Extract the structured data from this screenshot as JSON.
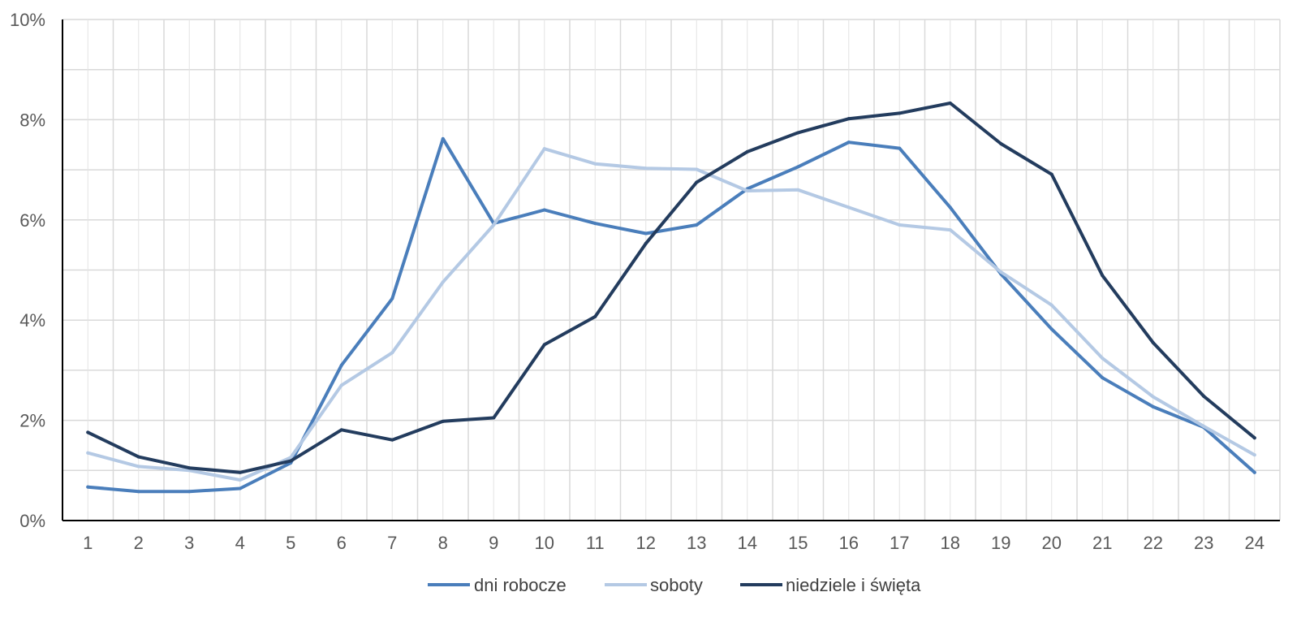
{
  "chart_data": {
    "type": "line",
    "title": "",
    "xlabel": "",
    "ylabel": "",
    "categories": [
      "1",
      "2",
      "3",
      "4",
      "5",
      "6",
      "7",
      "8",
      "9",
      "10",
      "11",
      "12",
      "13",
      "14",
      "15",
      "16",
      "17",
      "18",
      "19",
      "20",
      "21",
      "22",
      "23",
      "24"
    ],
    "ylim": [
      0,
      10
    ],
    "y_ticks": [
      0,
      2,
      4,
      6,
      8,
      10
    ],
    "y_tick_labels": [
      "0%",
      "2%",
      "4%",
      "6%",
      "8%",
      "10%"
    ],
    "grid": "on",
    "legend_position": "bottom",
    "series": [
      {
        "name": "dni robocze",
        "color": "#4a7ebb",
        "values": [
          0.67,
          0.58,
          0.58,
          0.64,
          1.15,
          3.1,
          4.43,
          7.62,
          5.93,
          6.2,
          5.93,
          5.73,
          5.9,
          6.62,
          7.06,
          7.55,
          7.43,
          6.25,
          4.92,
          3.82,
          2.85,
          2.27,
          1.86,
          0.96
        ]
      },
      {
        "name": "soboty",
        "color": "#b4c9e4",
        "values": [
          1.35,
          1.08,
          1.0,
          0.81,
          1.26,
          2.7,
          3.35,
          4.76,
          5.9,
          7.42,
          7.12,
          7.03,
          7.01,
          6.58,
          6.6,
          6.25,
          5.9,
          5.8,
          4.96,
          4.3,
          3.24,
          2.47,
          1.88,
          1.31
        ]
      },
      {
        "name": "niedziele i święta",
        "color": "#233c5e",
        "values": [
          1.76,
          1.27,
          1.05,
          0.96,
          1.19,
          1.81,
          1.61,
          1.98,
          2.05,
          3.51,
          4.07,
          5.53,
          6.75,
          7.36,
          7.74,
          8.02,
          8.13,
          8.33,
          7.52,
          6.91,
          4.89,
          3.55,
          2.48,
          1.65
        ]
      }
    ]
  }
}
